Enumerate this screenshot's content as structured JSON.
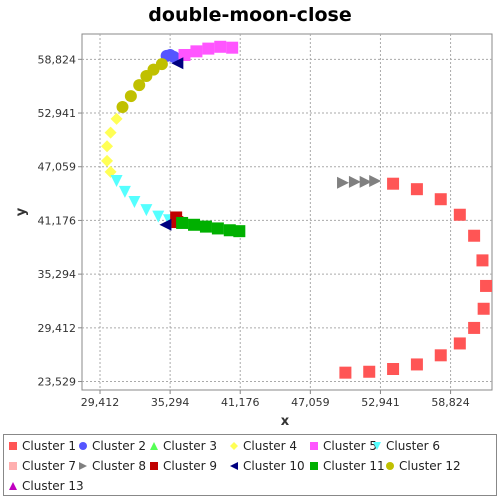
{
  "chart_data": {
    "type": "scatter",
    "title": "double-moon-close",
    "xlabel": "x",
    "ylabel": "y",
    "xlim": [
      27900,
      62300
    ],
    "ylim": [
      22600,
      61600
    ],
    "xticks": [
      "29,412",
      "35,294",
      "41,176",
      "47,059",
      "52,941",
      "58,824"
    ],
    "yticks": [
      "23,529",
      "29,412",
      "35,294",
      "41,176",
      "47,059",
      "52,941",
      "58,824"
    ],
    "grid": true,
    "legend_position": "bottom",
    "series": [
      {
        "name": "Cluster 1",
        "color": "#ff5555",
        "marker": "square",
        "points": [
          [
            54000,
            45200
          ],
          [
            56000,
            44600
          ],
          [
            58000,
            43500
          ],
          [
            59600,
            41800
          ],
          [
            60800,
            39500
          ],
          [
            61500,
            36800
          ],
          [
            61800,
            34000
          ],
          [
            61600,
            31500
          ],
          [
            60800,
            29400
          ],
          [
            59600,
            27700
          ],
          [
            58000,
            26400
          ],
          [
            56000,
            25400
          ],
          [
            54000,
            24900
          ],
          [
            52000,
            24600
          ],
          [
            50000,
            24500
          ]
        ]
      },
      {
        "name": "Cluster 2",
        "color": "#5555ff",
        "marker": "circle",
        "points": [
          [
            35000,
            59200
          ],
          [
            35300,
            59300
          ],
          [
            35600,
            59100
          ]
        ]
      },
      {
        "name": "Cluster 3",
        "color": "#55ff55",
        "marker": "triangle-up",
        "points": []
      },
      {
        "name": "Cluster 4",
        "color": "#ffff55",
        "marker": "diamond",
        "points": [
          [
            30800,
            52300
          ],
          [
            30300,
            50800
          ],
          [
            30000,
            49300
          ],
          [
            30000,
            47700
          ],
          [
            30300,
            46500
          ]
        ]
      },
      {
        "name": "Cluster 5",
        "color": "#ff55ff",
        "marker": "square",
        "points": [
          [
            36500,
            59300
          ],
          [
            37500,
            59700
          ],
          [
            38500,
            60000
          ],
          [
            39500,
            60200
          ],
          [
            40500,
            60100
          ]
        ]
      },
      {
        "name": "Cluster 6",
        "color": "#55ffff",
        "marker": "triangle-down",
        "points": [
          [
            30800,
            45500
          ],
          [
            31500,
            44300
          ],
          [
            32300,
            43200
          ],
          [
            33300,
            42300
          ],
          [
            34300,
            41600
          ],
          [
            35200,
            41200
          ]
        ]
      },
      {
        "name": "Cluster 7",
        "color": "#ffafaf",
        "marker": "square",
        "points": []
      },
      {
        "name": "Cluster 8",
        "color": "#808080",
        "marker": "triangle-right",
        "points": [
          [
            49800,
            45300
          ],
          [
            50800,
            45400
          ],
          [
            51700,
            45400
          ],
          [
            52500,
            45500
          ]
        ]
      },
      {
        "name": "Cluster 9",
        "color": "#c00000",
        "marker": "square",
        "points": [
          [
            35800,
            41500
          ],
          [
            35900,
            41000
          ]
        ]
      },
      {
        "name": "Cluster 10",
        "color": "#000080",
        "marker": "triangle-left",
        "points": [
          [
            35900,
            58400
          ],
          [
            34900,
            40700
          ]
        ]
      },
      {
        "name": "Cluster 11",
        "color": "#00b000",
        "marker": "square",
        "points": [
          [
            36300,
            40900
          ],
          [
            37300,
            40700
          ],
          [
            38300,
            40500
          ],
          [
            39300,
            40300
          ],
          [
            40300,
            40100
          ],
          [
            41100,
            40000
          ]
        ]
      },
      {
        "name": "Cluster 12",
        "color": "#c0c000",
        "marker": "circle",
        "points": [
          [
            32000,
            54800
          ],
          [
            32700,
            56000
          ],
          [
            33300,
            57000
          ],
          [
            33900,
            57700
          ],
          [
            34600,
            58300
          ],
          [
            31300,
            53600
          ]
        ]
      },
      {
        "name": "Cluster 13",
        "color": "#c000c0",
        "marker": "triangle-up",
        "points": []
      }
    ]
  }
}
